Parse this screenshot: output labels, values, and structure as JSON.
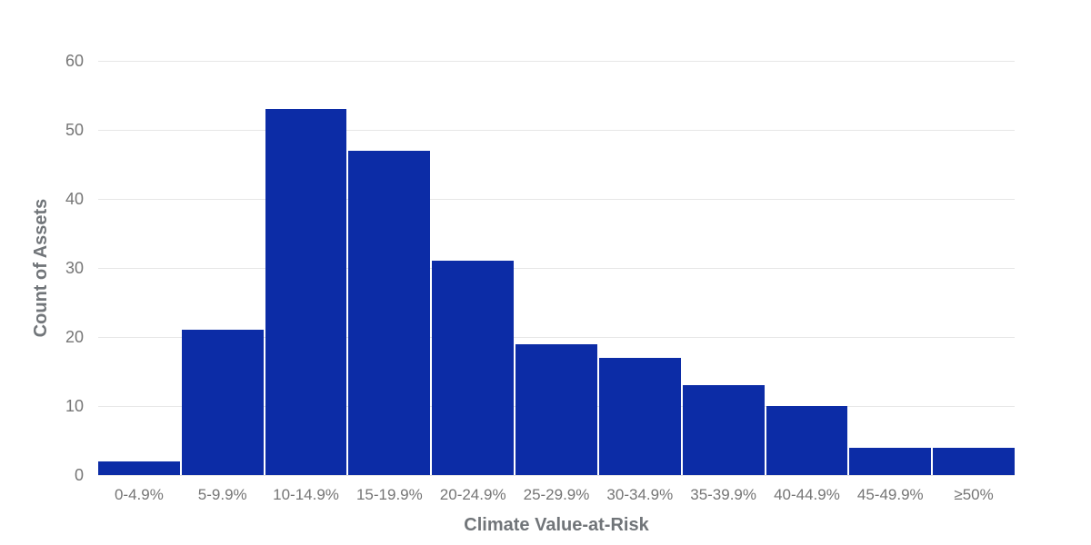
{
  "chart_data": {
    "type": "bar",
    "subtype": "histogram",
    "title": "",
    "categories": [
      "0-4.9%",
      "5-9.9%",
      "10-14.9%",
      "15-19.9%",
      "20-24.9%",
      "25-29.9%",
      "30-34.9%",
      "35-39.9%",
      "40-44.9%",
      "45-49.9%",
      "≥50%"
    ],
    "values": [
      2,
      21,
      53,
      47,
      31,
      19,
      17,
      13,
      10,
      4,
      4
    ],
    "xlabel": "Climate Value-at-Risk",
    "ylabel": "Count of Assets",
    "ylim": [
      0,
      60
    ],
    "yticks": [
      0,
      10,
      20,
      30,
      40,
      50,
      60
    ],
    "grid": "horizontal",
    "legend_position": "none",
    "colors": {
      "bar": "#0c2ca6",
      "gridline": "#e7e7e7",
      "tick_text": "#757575",
      "axis_title_text": "#717579",
      "background": "#ffffff"
    }
  }
}
